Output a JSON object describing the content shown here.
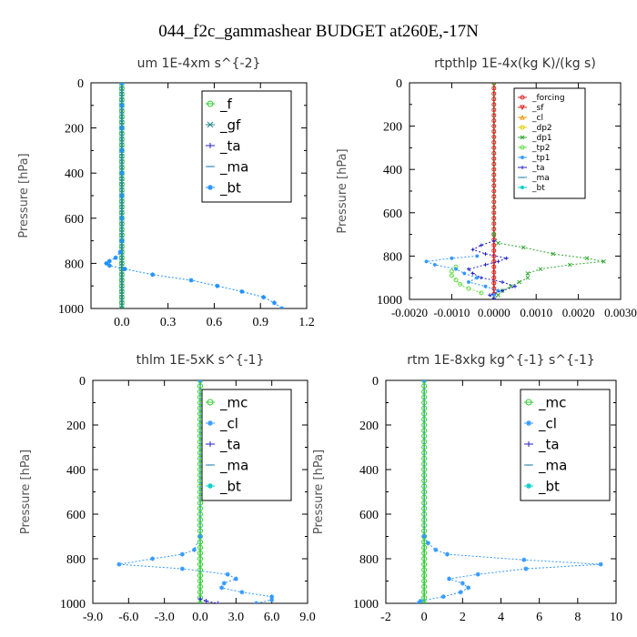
{
  "title": "044_f2c_gammashear  BUDGET at260E,-17N",
  "chart_data": [
    {
      "type": "line",
      "title": "um  1E-4xm s^{-2}",
      "ylabel": "Pressure [hPa]",
      "xlim": [
        -0.2,
        1.2
      ],
      "ylim": [
        1000,
        0
      ],
      "xticks": [
        "0.0",
        "0.3",
        "0.6",
        "0.9",
        "1.2"
      ],
      "xtick_values": [
        0,
        0.3,
        0.6,
        0.9,
        1.2
      ],
      "yticks": [
        "0",
        "200",
        "400",
        "600",
        "800",
        "1000"
      ],
      "legend_position": "top-right",
      "series": [
        {
          "name": "_f",
          "color": "#33cc33",
          "marker": "o",
          "p": [
            0,
            25,
            50,
            75,
            100,
            125,
            150,
            175,
            200,
            225,
            250,
            275,
            300,
            325,
            350,
            375,
            400,
            425,
            450,
            475,
            500,
            525,
            550,
            575,
            600,
            625,
            650,
            675,
            700,
            725,
            750,
            775,
            800,
            825,
            850,
            875,
            900,
            925,
            950,
            975,
            1000
          ],
          "v": [
            0,
            0,
            0,
            0,
            0,
            0,
            0,
            0,
            0,
            0,
            0,
            0,
            0,
            0,
            0,
            0,
            0,
            0,
            0,
            0,
            0,
            0,
            0,
            0,
            0,
            0,
            0,
            0,
            0,
            0,
            0,
            0,
            0,
            0,
            0,
            0,
            0,
            0,
            0,
            0,
            0
          ]
        },
        {
          "name": "_gf",
          "color": "#2a8a8a",
          "marker": "x",
          "p": [
            0,
            25,
            50,
            75,
            100,
            125,
            150,
            175,
            200,
            225,
            250,
            275,
            300,
            325,
            350,
            375,
            400,
            425,
            450,
            475,
            500,
            525,
            550,
            575,
            600,
            625,
            650,
            675,
            700,
            725,
            750,
            775,
            800,
            825,
            850,
            875,
            900,
            925,
            950,
            975,
            1000
          ],
          "v": [
            0,
            0,
            0,
            0,
            0,
            0,
            0,
            0,
            0,
            0,
            0,
            0,
            0,
            0,
            0,
            0,
            0,
            0,
            0,
            0,
            0,
            0,
            0,
            0,
            0,
            0,
            0,
            0,
            0,
            0,
            0,
            0,
            0,
            0,
            0,
            0,
            0,
            0,
            0,
            0,
            0
          ]
        },
        {
          "name": "_ta",
          "color": "#2222cc",
          "marker": "+",
          "p": [],
          "v": []
        },
        {
          "name": "_ma",
          "color": "#2a8ab0",
          "marker": "-",
          "p": [],
          "v": []
        },
        {
          "name": "_bt",
          "color": "#1e90ff",
          "marker": "*",
          "p": [
            0,
            100,
            200,
            300,
            400,
            500,
            600,
            700,
            750,
            775,
            790,
            800,
            810,
            825,
            850,
            875,
            900,
            925,
            950,
            975,
            1000
          ],
          "v": [
            0,
            0,
            0,
            0,
            0,
            0,
            0,
            0,
            -0.01,
            -0.04,
            -0.08,
            -0.1,
            -0.08,
            0.02,
            0.2,
            0.45,
            0.62,
            0.78,
            0.92,
            0.99,
            1.04
          ]
        }
      ]
    },
    {
      "type": "line",
      "title": "rtpthlp  1E-4x(kg K)/(kg s)",
      "ylabel": "Pressure [hPa]",
      "xlim": [
        -0.002,
        0.003
      ],
      "ylim": [
        1000,
        0
      ],
      "xticks": [
        "-0.0020",
        "-0.0010",
        "0.0000",
        "0.0010",
        "0.0020",
        "0.0030"
      ],
      "xtick_values": [
        -0.002,
        -0.001,
        0,
        0.001,
        0.002,
        0.003
      ],
      "yticks": [
        "0",
        "200",
        "400",
        "600",
        "800",
        "1000"
      ],
      "legend_position": "top-right",
      "series": [
        {
          "name": "_forcing",
          "color": "#dd2222",
          "marker": "o",
          "p": [
            0,
            25,
            50,
            75,
            100,
            125,
            150,
            175,
            200,
            225,
            250,
            275,
            300,
            325,
            350,
            375,
            400,
            425,
            450,
            475,
            500,
            525,
            550,
            575,
            600,
            625,
            650,
            675,
            700,
            725,
            750,
            775,
            800,
            825,
            850,
            875,
            900,
            925,
            950,
            975,
            1000
          ],
          "v": [
            0,
            0,
            0,
            0,
            0,
            0,
            0,
            0,
            0,
            0,
            0,
            0,
            0,
            0,
            0,
            0,
            0,
            0,
            0,
            0,
            0,
            0,
            0,
            0,
            0,
            0,
            0,
            0,
            0,
            0,
            0,
            0,
            0,
            0,
            0,
            0,
            0,
            0,
            0,
            0,
            0
          ]
        },
        {
          "name": "_sf",
          "color": "#dd2222",
          "marker": "v",
          "p": [],
          "v": []
        },
        {
          "name": "_cl",
          "color": "#ee9900",
          "marker": "^",
          "p": [],
          "v": []
        },
        {
          "name": "_dp2",
          "color": "#ddcc00",
          "marker": "o",
          "p": [],
          "v": []
        },
        {
          "name": "_dp1",
          "color": "#33aa33",
          "marker": "x",
          "p": [
            0,
            700,
            740,
            760,
            790,
            810,
            825,
            840,
            860,
            880,
            900,
            920,
            940,
            960,
            980,
            1000
          ],
          "v": [
            0,
            0,
            0.0001,
            0.0007,
            0.0014,
            0.0022,
            0.0026,
            0.0018,
            0.0011,
            0.0008,
            0.0008,
            0.0006,
            0.0004,
            0.0002,
            0.0001,
            0
          ]
        },
        {
          "name": "_tp2",
          "color": "#66dd44",
          "marker": "o",
          "p": [
            850,
            870,
            890,
            910,
            930,
            950,
            970
          ],
          "v": [
            -0.0009,
            -0.001,
            -0.001,
            -0.0009,
            -0.0008,
            -0.0006,
            -0.0003
          ]
        },
        {
          "name": "_tp1",
          "color": "#3399ff",
          "marker": "*",
          "p": [
            800,
            810,
            825,
            840,
            860,
            880,
            900,
            920,
            940,
            960,
            980,
            1000
          ],
          "v": [
            -0.0004,
            -0.001,
            -0.0016,
            -0.0014,
            -0.0009,
            -0.0007,
            -0.0004,
            -0.0006,
            -0.0002,
            0.0001,
            0,
            0
          ]
        },
        {
          "name": "_ta",
          "color": "#2222cc",
          "marker": "+",
          "p": [
            730,
            750,
            770,
            790,
            810,
            825,
            840,
            860,
            880,
            900,
            920,
            940,
            960,
            980,
            1000
          ],
          "v": [
            0,
            -0.0003,
            -0.0005,
            -0.0002,
            0.0003,
            0.0001,
            -0.0002,
            -0.0006,
            -0.0005,
            -0.0003,
            0.0002,
            0.0005,
            0.0002,
            -0.0001,
            0
          ]
        },
        {
          "name": "_ma",
          "color": "#2a8ab0",
          "marker": "-",
          "p": [],
          "v": []
        },
        {
          "name": "_bt",
          "color": "#00cccc",
          "marker": "*",
          "p": [],
          "v": []
        }
      ]
    },
    {
      "type": "line",
      "title": "thlm  1E-5xK s^{-1}",
      "ylabel": "Pressure [hPa]",
      "xlim": [
        -9,
        9
      ],
      "ylim": [
        1000,
        0
      ],
      "xticks": [
        "-9.0",
        "-6.0",
        "-3.0",
        "0.0",
        "3.0",
        "6.0",
        "9.0"
      ],
      "xtick_values": [
        -9,
        -6,
        -3,
        0,
        3,
        6,
        9
      ],
      "yticks": [
        "0",
        "200",
        "400",
        "600",
        "800",
        "1000"
      ],
      "legend_position": "top-right",
      "series": [
        {
          "name": "_mc",
          "color": "#33cc33",
          "marker": "o",
          "p": [
            0,
            25,
            50,
            75,
            100,
            125,
            150,
            175,
            200,
            225,
            250,
            275,
            300,
            325,
            350,
            375,
            400,
            425,
            450,
            475,
            500,
            525,
            550,
            575,
            600,
            625,
            650,
            675,
            700,
            725,
            750,
            775,
            800,
            825,
            850,
            875,
            900,
            925,
            950,
            975,
            1000
          ],
          "v": [
            0,
            0,
            0,
            0,
            0,
            0,
            0,
            0,
            0,
            0,
            0,
            0,
            0,
            0,
            0,
            0,
            0,
            0,
            0,
            0,
            0,
            0,
            0,
            0,
            0,
            0,
            0,
            0,
            0,
            0,
            0,
            0,
            0,
            0,
            0,
            0,
            0,
            0,
            0,
            0,
            0
          ]
        },
        {
          "name": "_cl",
          "color": "#3399ff",
          "marker": "*",
          "p": [
            0,
            700,
            760,
            780,
            800,
            825,
            845,
            870,
            890,
            910,
            930,
            950,
            970,
            985,
            1000
          ],
          "v": [
            0,
            0,
            -0.5,
            -1.5,
            -4,
            -6.8,
            -1.5,
            2.3,
            3,
            2,
            1.8,
            3.5,
            6,
            6,
            4.7
          ]
        },
        {
          "name": "_ta",
          "color": "#2222cc",
          "marker": "+",
          "p": [
            980,
            990,
            1000
          ],
          "v": [
            0,
            0.5,
            1.5
          ]
        },
        {
          "name": "_ma",
          "color": "#2a8ab0",
          "marker": "-",
          "p": [],
          "v": []
        },
        {
          "name": "_bt",
          "color": "#00cccc",
          "marker": "*",
          "p": [],
          "v": []
        }
      ]
    },
    {
      "type": "line",
      "title": "rtm  1E-8xkg kg^{-1} s^{-1}",
      "ylabel": "Pressure [hPa]",
      "xlim": [
        -2,
        10
      ],
      "ylim": [
        1000,
        0
      ],
      "xticks": [
        "-2",
        "0",
        "2",
        "4",
        "6",
        "8",
        "10"
      ],
      "xtick_values": [
        -2,
        0,
        2,
        4,
        6,
        8,
        10
      ],
      "yticks": [
        "0",
        "200",
        "400",
        "600",
        "800",
        "1000"
      ],
      "legend_position": "top-right",
      "series": [
        {
          "name": "_mc",
          "color": "#33cc33",
          "marker": "o",
          "p": [
            0,
            25,
            50,
            75,
            100,
            125,
            150,
            175,
            200,
            225,
            250,
            275,
            300,
            325,
            350,
            375,
            400,
            425,
            450,
            475,
            500,
            525,
            550,
            575,
            600,
            625,
            650,
            675,
            700,
            725,
            750,
            775,
            800,
            825,
            850,
            875,
            900,
            925,
            950,
            975,
            1000
          ],
          "v": [
            0,
            0,
            0,
            0,
            0,
            0,
            0,
            0,
            0,
            0,
            0,
            0,
            0,
            0,
            0,
            0,
            0,
            0,
            0,
            0,
            0,
            0,
            0,
            0,
            0,
            0,
            0,
            0,
            0,
            0,
            0,
            0,
            0,
            0,
            0,
            0,
            0,
            0,
            0,
            0,
            0
          ]
        },
        {
          "name": "_cl",
          "color": "#3399ff",
          "marker": "*",
          "p": [
            0,
            700,
            730,
            760,
            780,
            805,
            825,
            845,
            870,
            890,
            910,
            930,
            950,
            970,
            990,
            1000
          ],
          "v": [
            0,
            0,
            0.2,
            0.6,
            1.2,
            5.2,
            9.2,
            5.3,
            2.8,
            1.3,
            2,
            2.3,
            1.9,
            1,
            -0.2,
            -0.3
          ]
        },
        {
          "name": "_ta",
          "color": "#2222cc",
          "marker": "+",
          "p": [],
          "v": []
        },
        {
          "name": "_ma",
          "color": "#2a8ab0",
          "marker": "-",
          "p": [],
          "v": []
        },
        {
          "name": "_bt",
          "color": "#00cccc",
          "marker": "*",
          "p": [],
          "v": []
        }
      ]
    }
  ]
}
